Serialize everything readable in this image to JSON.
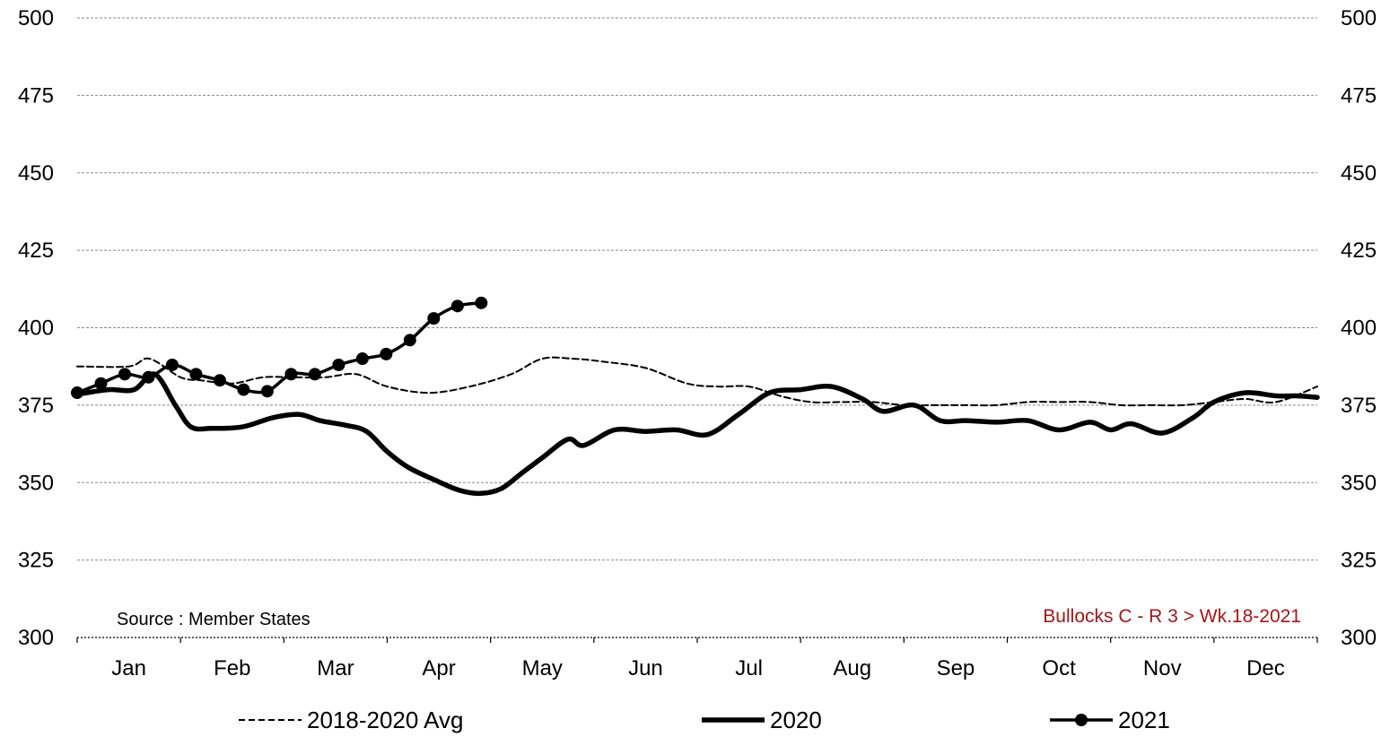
{
  "chart_data": {
    "type": "line",
    "title": "",
    "xlabel": "",
    "ylabel": "",
    "x_ticks": [
      "Jan",
      "Feb",
      "Mar",
      "Apr",
      "May",
      "Jun",
      "Jul",
      "Aug",
      "Sep",
      "Oct",
      "Nov",
      "Dec"
    ],
    "x_range": [
      0,
      12
    ],
    "ylim": [
      300,
      500
    ],
    "y_ticks": [
      300,
      325,
      350,
      375,
      400,
      425,
      450,
      475,
      500
    ],
    "grid": true,
    "legend_position": "bottom",
    "source_note": "Source : Member  States",
    "series_label": "Bullocks C - R 3     > Wk.18-2021",
    "label_color": "#a01818",
    "series": [
      {
        "name": "2018-2020 Avg",
        "style": "dashed",
        "color": "#000000",
        "x": [
          0.0,
          0.5,
          0.7,
          1.0,
          1.2,
          1.5,
          1.8,
          2.1,
          2.4,
          2.7,
          3.0,
          3.4,
          3.8,
          4.2,
          4.5,
          4.8,
          5.1,
          5.5,
          5.9,
          6.2,
          6.5,
          6.8,
          7.1,
          7.4,
          7.7,
          8.0,
          8.3,
          8.6,
          8.9,
          9.2,
          9.5,
          9.8,
          10.1,
          10.4,
          10.7,
          11.0,
          11.3,
          11.6,
          12.0
        ],
        "values": [
          387.5,
          387.5,
          390,
          384,
          383,
          382,
          384,
          384,
          384,
          385,
          381,
          379,
          381,
          385,
          390,
          390,
          389,
          387,
          382,
          381,
          381,
          378,
          376,
          376,
          376,
          375,
          375,
          375,
          375,
          376,
          376,
          376,
          375,
          375,
          375,
          376,
          377,
          376,
          381
        ]
      },
      {
        "name": "2020",
        "style": "thick",
        "color": "#000000",
        "x": [
          0.0,
          0.3,
          0.55,
          0.75,
          0.95,
          1.1,
          1.3,
          1.6,
          1.9,
          2.15,
          2.35,
          2.6,
          2.8,
          3.0,
          3.2,
          3.45,
          3.7,
          3.9,
          4.1,
          4.3,
          4.5,
          4.75,
          4.9,
          5.2,
          5.5,
          5.8,
          6.1,
          6.4,
          6.7,
          7.0,
          7.3,
          7.6,
          7.8,
          8.1,
          8.35,
          8.6,
          8.9,
          9.2,
          9.5,
          9.8,
          10.0,
          10.2,
          10.5,
          10.8,
          11.0,
          11.3,
          11.6,
          11.8,
          12.0
        ],
        "values": [
          378.5,
          380,
          380,
          385,
          375,
          368,
          367.5,
          368,
          371,
          372,
          370,
          368.5,
          366.5,
          360,
          355,
          351,
          347.5,
          346.5,
          348,
          353,
          358,
          364,
          362,
          367,
          366.5,
          367,
          365.5,
          372,
          379,
          380,
          381,
          377,
          373,
          375,
          370,
          370,
          369.5,
          370,
          367,
          369.5,
          367,
          369,
          366,
          371,
          376,
          379,
          378,
          378,
          377.5
        ]
      },
      {
        "name": "2021",
        "style": "marker",
        "color": "#000000",
        "x": [
          0.0,
          0.23,
          0.46,
          0.69,
          0.92,
          1.15,
          1.38,
          1.61,
          1.84,
          2.07,
          2.3,
          2.53,
          2.76,
          2.99,
          3.22,
          3.45,
          3.68,
          3.91
        ],
        "values": [
          379,
          382,
          385,
          384,
          388,
          385,
          383,
          380,
          379.5,
          385,
          385,
          388,
          390,
          391.5,
          396,
          403,
          407,
          408
        ]
      }
    ]
  }
}
